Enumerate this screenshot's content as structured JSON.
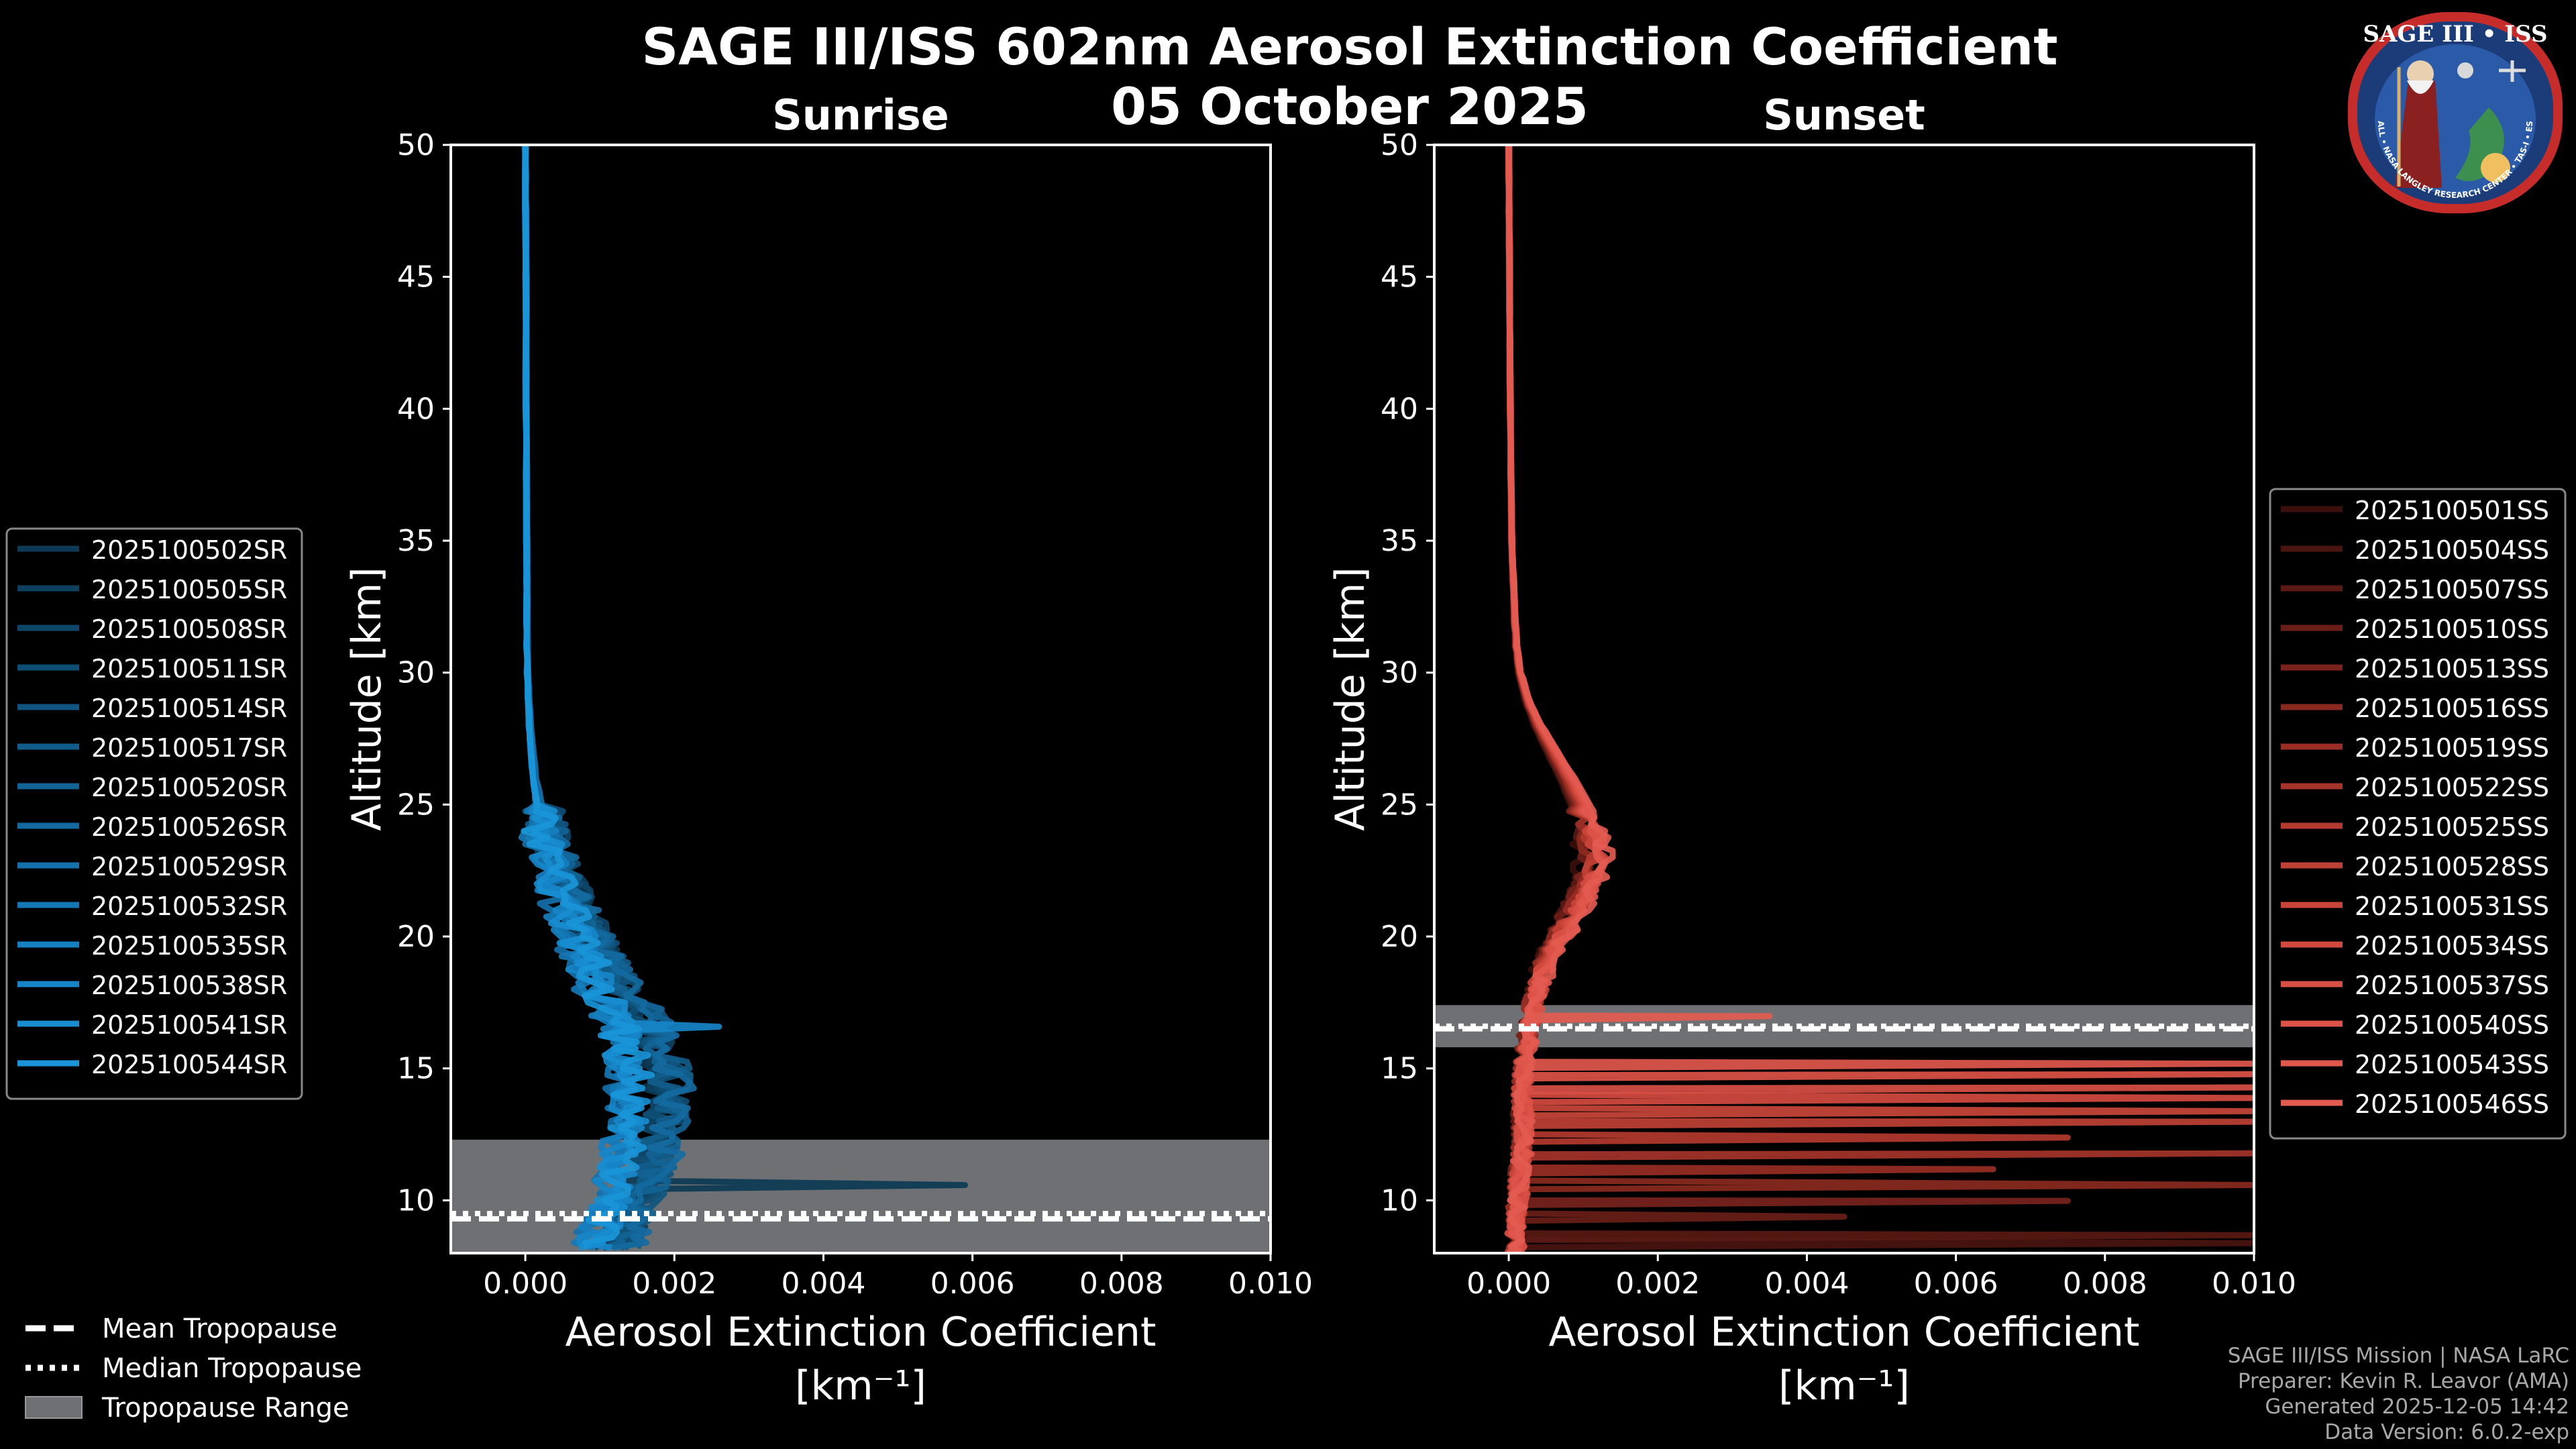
{
  "title": "SAGE III/ISS 602nm Aerosol Extinction Coefficient",
  "date": "05 October 2025",
  "logo": {
    "text": "SAGE III • ISS",
    "ring_text": "BALL • NASA LANGLEY RESEARCH CENTER • TAS-I • ESA",
    "alt": "mission-patch"
  },
  "credits": [
    "SAGE III/ISS Mission | NASA LaRC",
    "Preparer: Kevin R. Leavor (AMA)",
    "Generated 2025-12-05 14:42",
    "Data Version: 6.0.2-exp"
  ],
  "tropopause_legend": [
    {
      "label": "Mean Tropopause",
      "style": "dashed"
    },
    {
      "label": "Median Tropopause",
      "style": "dotted"
    },
    {
      "label": "Tropopause Range",
      "style": "band"
    }
  ],
  "colors": {
    "sunrise": "#1a95d4",
    "sunset": "#e0564a",
    "band": "#6e7073",
    "axes": "#ffffff",
    "bg": "#000000"
  },
  "chart_data": [
    {
      "type": "line",
      "title": "Sunrise",
      "xlabel": "Aerosol Extinction Coefficient",
      "xunit": "[km⁻¹]",
      "ylabel": "Altitude [km]",
      "xlim": [
        -0.001,
        0.01
      ],
      "ylim": [
        8,
        50
      ],
      "xticks": [
        "0.000",
        "0.002",
        "0.004",
        "0.006",
        "0.008",
        "0.010"
      ],
      "xtick_values": [
        0,
        0.002,
        0.004,
        0.006,
        0.008,
        0.01
      ],
      "yticks": [
        10,
        15,
        20,
        25,
        30,
        35,
        40,
        45,
        50
      ],
      "tropopause": {
        "mean": 9.3,
        "median": 9.5,
        "range": [
          8.0,
          12.3
        ]
      },
      "series": [
        {
          "name": "2025100502SR",
          "color": "#0c3954"
        },
        {
          "name": "2025100505SR",
          "color": "#0d3f5e"
        },
        {
          "name": "2025100508SR",
          "color": "#0e4669"
        },
        {
          "name": "2025100511SR",
          "color": "#0f4e74"
        },
        {
          "name": "2025100514SR",
          "color": "#10557f"
        },
        {
          "name": "2025100517SR",
          "color": "#115c8a"
        },
        {
          "name": "2025100520SR",
          "color": "#126395"
        },
        {
          "name": "2025100526SR",
          "color": "#136aa0"
        },
        {
          "name": "2025100529SR",
          "color": "#1471ab"
        },
        {
          "name": "2025100532SR",
          "color": "#1578b5"
        },
        {
          "name": "2025100535SR",
          "color": "#167fbf"
        },
        {
          "name": "2025100538SR",
          "color": "#1786c8"
        },
        {
          "name": "2025100541SR",
          "color": "#188dd0"
        },
        {
          "name": "2025100544SR",
          "color": "#1a95d8"
        }
      ],
      "profile_base": [
        [
          50,
          0.0
        ],
        [
          45,
          1e-05
        ],
        [
          40,
          1e-05
        ],
        [
          35,
          2e-05
        ],
        [
          32,
          2e-05
        ],
        [
          30,
          3e-05
        ],
        [
          28,
          6e-05
        ],
        [
          26,
          0.00012
        ],
        [
          25,
          0.00018
        ],
        [
          24,
          0.00025
        ],
        [
          23,
          0.00035
        ],
        [
          22,
          0.00048
        ],
        [
          21,
          0.00062
        ],
        [
          20,
          0.00078
        ],
        [
          19,
          0.00095
        ],
        [
          18,
          0.00112
        ],
        [
          17,
          0.00135
        ],
        [
          16,
          0.0015
        ],
        [
          15,
          0.0016
        ],
        [
          14,
          0.00162
        ],
        [
          13,
          0.00158
        ],
        [
          12,
          0.0015
        ],
        [
          11,
          0.00142
        ],
        [
          10,
          0.00132
        ],
        [
          9,
          0.0012
        ],
        [
          8.2,
          0.00105
        ]
      ],
      "outliers": [
        {
          "series": 0,
          "y": 10.5,
          "x": 0.0059
        },
        {
          "series": 11,
          "y": 16.5,
          "x": 0.0026
        }
      ]
    },
    {
      "type": "line",
      "title": "Sunset",
      "xlabel": "Aerosol Extinction Coefficient",
      "xunit": "[km⁻¹]",
      "ylabel": "Altitude [km]",
      "xlim": [
        -0.001,
        0.01
      ],
      "ylim": [
        8,
        50
      ],
      "xticks": [
        "0.000",
        "0.002",
        "0.004",
        "0.006",
        "0.008",
        "0.010"
      ],
      "xtick_values": [
        0,
        0.002,
        0.004,
        0.006,
        0.008,
        0.01
      ],
      "yticks": [
        10,
        15,
        20,
        25,
        30,
        35,
        40,
        45,
        50
      ],
      "tropopause": {
        "mean": 16.5,
        "median": 16.6,
        "range": [
          15.8,
          17.4
        ]
      },
      "series": [
        {
          "name": "2025100501SS",
          "color": "#3a0f0c"
        },
        {
          "name": "2025100504SS",
          "color": "#4a1410"
        },
        {
          "name": "2025100507SS",
          "color": "#5a1914"
        },
        {
          "name": "2025100510SS",
          "color": "#6a1e18"
        },
        {
          "name": "2025100513SS",
          "color": "#7a231c"
        },
        {
          "name": "2025100516SS",
          "color": "#8a2920"
        },
        {
          "name": "2025100519SS",
          "color": "#982e25"
        },
        {
          "name": "2025100522SS",
          "color": "#a6342a"
        },
        {
          "name": "2025100525SS",
          "color": "#b33a2f"
        },
        {
          "name": "2025100528SS",
          "color": "#bf4034"
        },
        {
          "name": "2025100531SS",
          "color": "#c9453a"
        },
        {
          "name": "2025100534SS",
          "color": "#d24a3f"
        },
        {
          "name": "2025100537SS",
          "color": "#d84f44"
        },
        {
          "name": "2025100540SS",
          "color": "#dd5348"
        },
        {
          "name": "2025100543SS",
          "color": "#e0574c"
        },
        {
          "name": "2025100546SS",
          "color": "#e35b50"
        }
      ],
      "profile_base": [
        [
          50,
          0.0
        ],
        [
          45,
          1e-05
        ],
        [
          40,
          2e-05
        ],
        [
          35,
          4e-05
        ],
        [
          32,
          8e-05
        ],
        [
          31,
          0.0001
        ],
        [
          30,
          0.00015
        ],
        [
          29,
          0.00025
        ],
        [
          28,
          0.0004
        ],
        [
          27,
          0.0006
        ],
        [
          26,
          0.0008
        ],
        [
          25,
          0.00098
        ],
        [
          24,
          0.00112
        ],
        [
          23,
          0.00118
        ],
        [
          22,
          0.00108
        ],
        [
          21,
          0.0009
        ],
        [
          20,
          0.0007
        ],
        [
          19,
          0.0005
        ],
        [
          18,
          0.00038
        ],
        [
          17,
          0.0003
        ],
        [
          16,
          0.00025
        ],
        [
          15,
          0.0002
        ],
        [
          14,
          0.00018
        ],
        [
          13,
          0.0002
        ],
        [
          12,
          0.00018
        ],
        [
          11,
          0.00015
        ],
        [
          10,
          0.00012
        ],
        [
          9,
          0.0001
        ],
        [
          8,
          8e-05
        ]
      ],
      "outliers": [
        {
          "series": 15,
          "y": 16.9,
          "x": 0.0035
        },
        {
          "series": 14,
          "y": 15.1,
          "x": 0.01
        },
        {
          "series": 13,
          "y": 14.7,
          "x": 0.01
        },
        {
          "series": 12,
          "y": 14.2,
          "x": 0.01
        },
        {
          "series": 11,
          "y": 13.8,
          "x": 0.01
        },
        {
          "series": 10,
          "y": 13.3,
          "x": 0.01
        },
        {
          "series": 9,
          "y": 12.9,
          "x": 0.01
        },
        {
          "series": 8,
          "y": 12.3,
          "x": 0.0075
        },
        {
          "series": 7,
          "y": 11.7,
          "x": 0.01
        },
        {
          "series": 6,
          "y": 11.1,
          "x": 0.0065
        },
        {
          "series": 5,
          "y": 10.5,
          "x": 0.01
        },
        {
          "series": 4,
          "y": 9.9,
          "x": 0.0075
        },
        {
          "series": 3,
          "y": 9.3,
          "x": 0.0045
        },
        {
          "series": 2,
          "y": 8.6,
          "x": 0.01
        },
        {
          "series": 1,
          "y": 8.3,
          "x": 0.01
        }
      ]
    }
  ]
}
